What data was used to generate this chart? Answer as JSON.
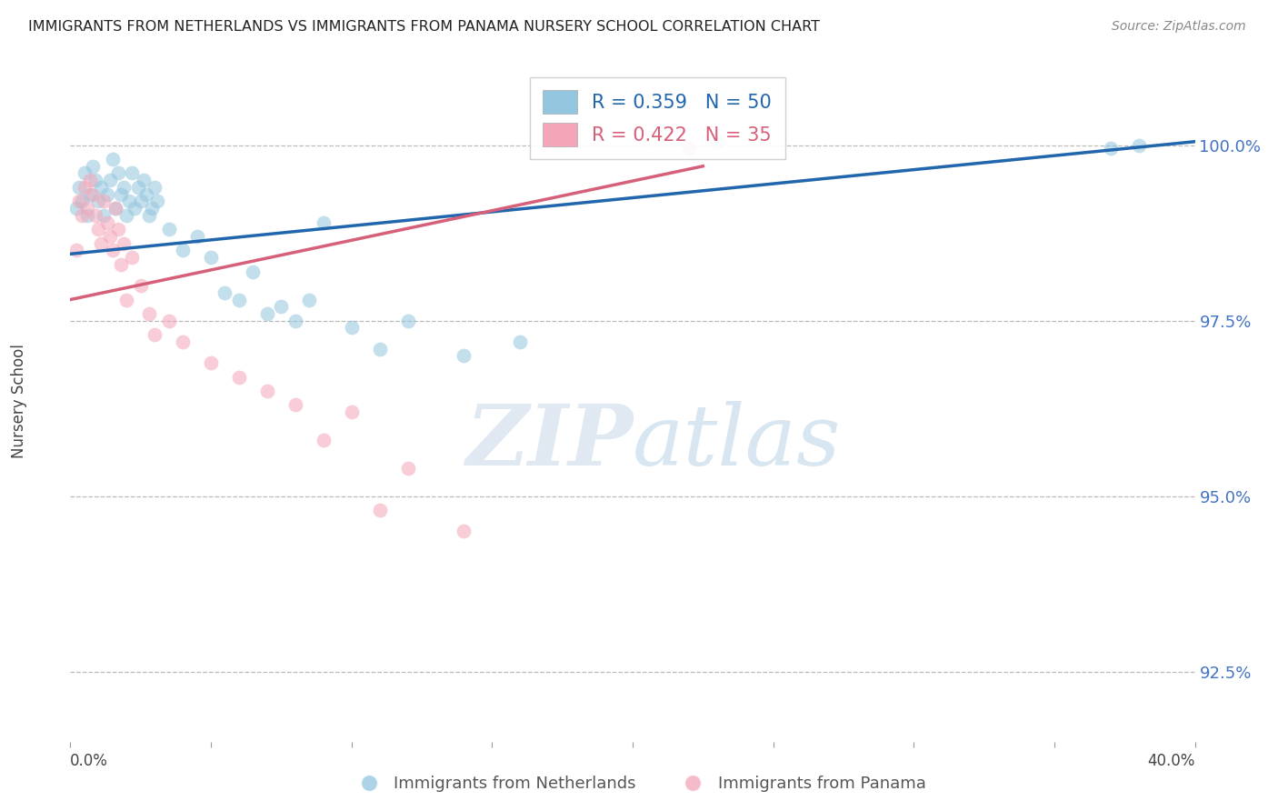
{
  "title": "IMMIGRANTS FROM NETHERLANDS VS IMMIGRANTS FROM PANAMA NURSERY SCHOOL CORRELATION CHART",
  "source": "Source: ZipAtlas.com",
  "ylabel": "Nursery School",
  "yticks": [
    92.5,
    95.0,
    97.5,
    100.0
  ],
  "ytick_labels": [
    "92.5%",
    "95.0%",
    "97.5%",
    "100.0%"
  ],
  "xmin": 0.0,
  "xmax": 40.0,
  "ymin": 91.5,
  "ymax": 101.2,
  "netherlands_R": 0.359,
  "netherlands_N": 50,
  "panama_R": 0.422,
  "panama_N": 35,
  "netherlands_color": "#92c5de",
  "panama_color": "#f4a5b8",
  "trendline_netherlands_color": "#2166ac",
  "trendline_panama_color": "#d6607a",
  "background_color": "#ffffff",
  "watermark_zip": "ZIP",
  "watermark_atlas": "atlas",
  "nl_x": [
    0.2,
    0.3,
    0.4,
    0.5,
    0.6,
    0.7,
    0.8,
    0.9,
    1.0,
    1.1,
    1.2,
    1.3,
    1.4,
    1.5,
    1.6,
    1.7,
    1.8,
    1.9,
    2.0,
    2.1,
    2.2,
    2.3,
    2.4,
    2.5,
    2.6,
    2.7,
    2.8,
    2.9,
    3.0,
    3.1,
    3.5,
    4.0,
    4.5,
    5.0,
    5.5,
    6.0,
    6.5,
    7.0,
    7.5,
    8.0,
    8.5,
    9.0,
    10.0,
    11.0,
    12.0,
    14.0,
    16.0,
    23.0,
    37.0,
    38.0
  ],
  "nl_y": [
    99.1,
    99.4,
    99.2,
    99.6,
    99.0,
    99.3,
    99.7,
    99.5,
    99.2,
    99.4,
    99.0,
    99.3,
    99.5,
    99.8,
    99.1,
    99.6,
    99.3,
    99.4,
    99.0,
    99.2,
    99.6,
    99.1,
    99.4,
    99.2,
    99.5,
    99.3,
    99.0,
    99.1,
    99.4,
    99.2,
    98.8,
    98.5,
    98.7,
    98.4,
    97.9,
    97.8,
    98.2,
    97.6,
    97.7,
    97.5,
    97.8,
    98.9,
    97.4,
    97.1,
    97.5,
    97.0,
    97.2,
    100.05,
    99.95,
    100.0
  ],
  "pa_x": [
    0.2,
    0.3,
    0.4,
    0.5,
    0.6,
    0.7,
    0.8,
    0.9,
    1.0,
    1.1,
    1.2,
    1.3,
    1.4,
    1.5,
    1.6,
    1.7,
    1.8,
    1.9,
    2.0,
    2.2,
    2.5,
    2.8,
    3.0,
    3.5,
    4.0,
    5.0,
    6.0,
    7.0,
    8.0,
    9.0,
    10.0,
    11.0,
    12.0,
    14.0,
    22.0
  ],
  "pa_y": [
    98.5,
    99.2,
    99.0,
    99.4,
    99.1,
    99.5,
    99.3,
    99.0,
    98.8,
    98.6,
    99.2,
    98.9,
    98.7,
    98.5,
    99.1,
    98.8,
    98.3,
    98.6,
    97.8,
    98.4,
    98.0,
    97.6,
    97.3,
    97.5,
    97.2,
    96.9,
    96.7,
    96.5,
    96.3,
    95.8,
    96.2,
    94.8,
    95.4,
    94.5,
    99.95
  ],
  "trendline_nl_x0": 0.0,
  "trendline_nl_x1": 40.0,
  "trendline_nl_y0": 98.45,
  "trendline_nl_y1": 100.05,
  "trendline_pa_x0": 0.0,
  "trendline_pa_x1": 22.5,
  "trendline_pa_y0": 97.8,
  "trendline_pa_y1": 99.7
}
